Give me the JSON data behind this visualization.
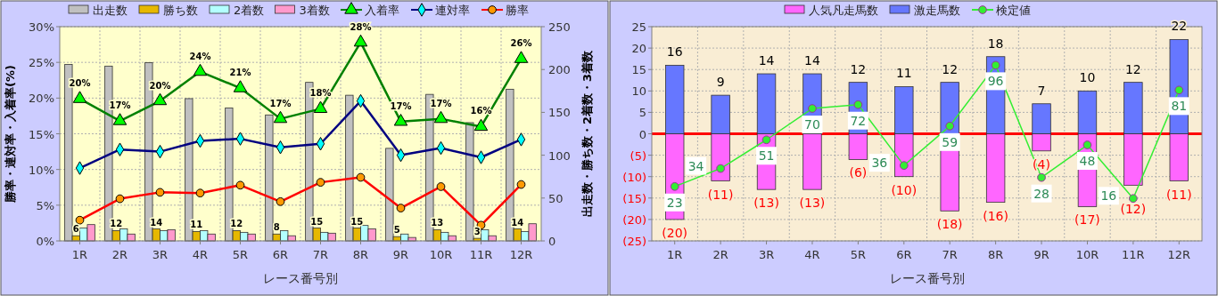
{
  "chart_data": [
    {
      "type": "bar",
      "categories": [
        "1R",
        "2R",
        "3R",
        "4R",
        "5R",
        "6R",
        "7R",
        "8R",
        "9R",
        "10R",
        "11R",
        "12R"
      ],
      "xlabel": "レース番号別",
      "ylabel": "勝率・連対率・入着率(%)",
      "y2label": "出走数・勝ち数・2着数・3着数",
      "ylim": [
        0,
        30
      ],
      "yticks": [
        {
          "value": 0,
          "label": "0%"
        },
        {
          "value": 5,
          "label": "5%"
        },
        {
          "value": 10,
          "label": "10%"
        },
        {
          "value": 15,
          "label": "15%"
        },
        {
          "value": 20,
          "label": "20%"
        },
        {
          "value": 25,
          "label": "25%"
        },
        {
          "value": 30,
          "label": "30%"
        }
      ],
      "y2lim": [
        0,
        250
      ],
      "y2ticks": [
        0,
        50,
        100,
        150,
        200,
        250
      ],
      "grid": true,
      "legend": "top",
      "series": [
        {
          "name": "出走数",
          "type": "bar",
          "axis": "y2",
          "color": "#c0c0c0",
          "values": [
            206,
            204,
            208,
            166,
            155,
            147,
            185,
            170,
            108,
            171,
            138,
            177
          ]
        },
        {
          "name": "勝ち数",
          "type": "bar",
          "axis": "y2",
          "color": "#e6b800",
          "values": [
            6,
            12,
            14,
            11,
            12,
            8,
            15,
            15,
            5,
            13,
            3,
            14
          ],
          "value_labels": [
            "6",
            "12",
            "14",
            "11",
            "12",
            "8",
            "15",
            "15",
            "5",
            "13",
            "3",
            "14"
          ]
        },
        {
          "name": "2着数",
          "type": "bar",
          "axis": "y2",
          "color": "#b3ffff",
          "values": [
            15,
            14,
            12,
            12,
            10,
            12,
            10,
            18,
            8,
            10,
            13,
            11
          ]
        },
        {
          "name": "3着数",
          "type": "bar",
          "axis": "y2",
          "color": "#ff99cc",
          "values": [
            19,
            8,
            13,
            8,
            8,
            6,
            9,
            14,
            4,
            6,
            6,
            20
          ]
        },
        {
          "name": "入着率",
          "type": "line",
          "axis": "y",
          "color": "#008000",
          "marker": "triangle",
          "values": [
            19.9,
            16.8,
            19.6,
            23.7,
            21.4,
            17.1,
            18.5,
            27.8,
            16.7,
            17.1,
            16.0,
            25.5
          ],
          "value_labels": [
            "20%",
            "17%",
            "20%",
            "24%",
            "21%",
            "17%",
            "18%",
            "28%",
            "17%",
            "17%",
            "16%",
            "26%"
          ]
        },
        {
          "name": "連対率",
          "type": "line",
          "axis": "y",
          "color": "#000080",
          "marker": "diamond",
          "values": [
            10.2,
            12.8,
            12.5,
            14.0,
            14.3,
            13.1,
            13.6,
            19.6,
            12.0,
            13.0,
            11.7,
            14.2
          ]
        },
        {
          "name": "勝率",
          "type": "line",
          "axis": "y",
          "color": "#ff0000",
          "marker": "circle",
          "values": [
            2.9,
            5.9,
            6.8,
            6.7,
            7.8,
            5.5,
            8.2,
            8.9,
            4.6,
            7.6,
            2.2,
            7.9
          ]
        }
      ]
    },
    {
      "type": "bar",
      "stacked": true,
      "categories": [
        "1R",
        "2R",
        "3R",
        "4R",
        "5R",
        "6R",
        "7R",
        "8R",
        "9R",
        "10R",
        "11R",
        "12R"
      ],
      "xlabel": "レース番号別",
      "ylim": [
        -25,
        25
      ],
      "yticks": [
        {
          "value": -25,
          "label": "(25)"
        },
        {
          "value": -20,
          "label": "(20)"
        },
        {
          "value": -15,
          "label": "(15)"
        },
        {
          "value": -10,
          "label": "(10)"
        },
        {
          "value": -5,
          "label": "(5)"
        },
        0,
        5,
        10,
        15,
        20,
        25
      ],
      "grid": true,
      "legend": "top",
      "ref_lines": [
        {
          "axis": "y",
          "value": 0,
          "color": "#ff0000"
        }
      ],
      "series": [
        {
          "name": "人気凡走馬数",
          "type": "bar",
          "color": "#ff66ff",
          "values": [
            -20,
            -11,
            -13,
            -13,
            -6,
            -10,
            -18,
            -16,
            -4,
            -17,
            -12,
            -11
          ],
          "value_labels": [
            "(20)",
            "(11)",
            "(13)",
            "(13)",
            "(6)",
            "(10)",
            "(18)",
            "(16)",
            "(4)",
            "(17)",
            "(12)",
            "(11)"
          ]
        },
        {
          "name": "激走馬数",
          "type": "bar",
          "color": "#6677ff",
          "values": [
            16,
            9,
            14,
            14,
            12,
            11,
            12,
            18,
            7,
            10,
            12,
            22
          ],
          "value_labels": [
            "16",
            "9",
            "14",
            "14",
            "12",
            "11",
            "12",
            "18",
            "7",
            "10",
            "12",
            "22"
          ]
        },
        {
          "name": "検定値",
          "type": "line",
          "color": "#33ee33",
          "marker": "circle",
          "values": [
            -12.3,
            -8.1,
            -1.4,
            5.9,
            6.8,
            -7.4,
            1.8,
            16.0,
            -10.2,
            -2.6,
            -15.1,
            10.2
          ]
        }
      ],
      "annotations": [
        {
          "text": "23",
          "x": "1R",
          "y": -12.3
        },
        {
          "text": "34",
          "x": "2R",
          "y": -8.1
        },
        {
          "text": "51",
          "x": "3R",
          "y": -1.4
        },
        {
          "text": "70",
          "x": "4R",
          "y": 5.9
        },
        {
          "text": "72",
          "x": "5R",
          "y": 6.8
        },
        {
          "text": "36",
          "x": "6R",
          "y": -7.4
        },
        {
          "text": "59",
          "x": "7R",
          "y": 1.8
        },
        {
          "text": "96",
          "x": "8R",
          "y": 16.0
        },
        {
          "text": "28",
          "x": "9R",
          "y": -10.2
        },
        {
          "text": "48",
          "x": "10R",
          "y": -2.6
        },
        {
          "text": "16",
          "x": "11R",
          "y": -15.1
        },
        {
          "text": "81",
          "x": "12R",
          "y": 10.2
        }
      ]
    }
  ]
}
